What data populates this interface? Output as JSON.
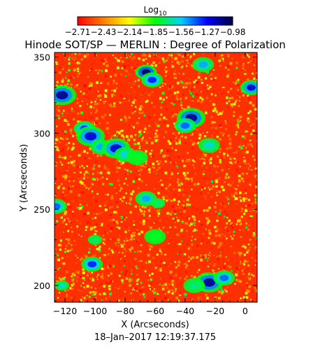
{
  "chart_data": {
    "type": "heatmap",
    "title": "Hinode SOT/SP — MERLIN : Degree of Polarization",
    "xlabel": "X (Arcseconds)",
    "ylabel": "Y (Arcseconds)",
    "xlim": [
      -127,
      8
    ],
    "ylim": [
      189,
      353
    ],
    "x_ticks": [
      -120,
      -100,
      -80,
      -60,
      -40,
      -20,
      0
    ],
    "x_tick_labels": [
      "−120",
      "−100",
      "−80",
      "−60",
      "−40",
      "−20",
      "0"
    ],
    "y_ticks": [
      200,
      250,
      300,
      350
    ],
    "y_tick_labels": [
      "200",
      "250",
      "300",
      "350"
    ],
    "timestamp": "18–Jan–2017 12:19:37.175",
    "colorbar": {
      "label_base": "Log",
      "label_sub": "10",
      "range": [
        -2.71,
        -0.98
      ],
      "tick_labels": [
        "−2.71",
        "−2.43",
        "−2.14",
        "−1.85",
        "−1.56",
        "−1.27",
        "−0.98"
      ],
      "colors": [
        "#ff0000",
        "#ff7f00",
        "#ffff00",
        "#00ff00",
        "#00d0ff",
        "#0000ff",
        "#000040"
      ]
    },
    "background_level": -2.6,
    "features": [
      {
        "x": -122,
        "y": 325,
        "level": -1.1,
        "r": 4
      },
      {
        "x": -107,
        "y": 303,
        "level": -1.3,
        "r": 3
      },
      {
        "x": -103,
        "y": 298,
        "level": -1.2,
        "r": 4
      },
      {
        "x": -96,
        "y": 291,
        "level": -1.5,
        "r": 3
      },
      {
        "x": -86,
        "y": 290,
        "level": -1.2,
        "r": 4
      },
      {
        "x": -80,
        "y": 286,
        "level": -1.6,
        "r": 3
      },
      {
        "x": -72,
        "y": 284,
        "level": -1.8,
        "r": 3
      },
      {
        "x": -66,
        "y": 340,
        "level": -1.0,
        "r": 3
      },
      {
        "x": -62,
        "y": 335,
        "level": -1.3,
        "r": 3
      },
      {
        "x": -36,
        "y": 310,
        "level": -1.1,
        "r": 4
      },
      {
        "x": -40,
        "y": 305,
        "level": -1.4,
        "r": 3
      },
      {
        "x": -24,
        "y": 292,
        "level": -1.6,
        "r": 3
      },
      {
        "x": -28,
        "y": 345,
        "level": -1.5,
        "r": 3
      },
      {
        "x": 4,
        "y": 330,
        "level": -1.2,
        "r": 3
      },
      {
        "x": -66,
        "y": 257,
        "level": -1.5,
        "r": 3
      },
      {
        "x": -58,
        "y": 254,
        "level": -1.7,
        "r": 2
      },
      {
        "x": -126,
        "y": 252,
        "level": -1.4,
        "r": 3
      },
      {
        "x": -102,
        "y": 214,
        "level": -1.3,
        "r": 3
      },
      {
        "x": -100,
        "y": 230,
        "level": -1.7,
        "r": 2
      },
      {
        "x": -24,
        "y": 202,
        "level": -1.1,
        "r": 4
      },
      {
        "x": -14,
        "y": 205,
        "level": -1.4,
        "r": 3
      },
      {
        "x": -34,
        "y": 200,
        "level": -1.7,
        "r": 3
      },
      {
        "x": -122,
        "y": 200,
        "level": -1.6,
        "r": 2
      },
      {
        "x": -60,
        "y": 232,
        "level": -1.8,
        "r": 3
      }
    ]
  }
}
